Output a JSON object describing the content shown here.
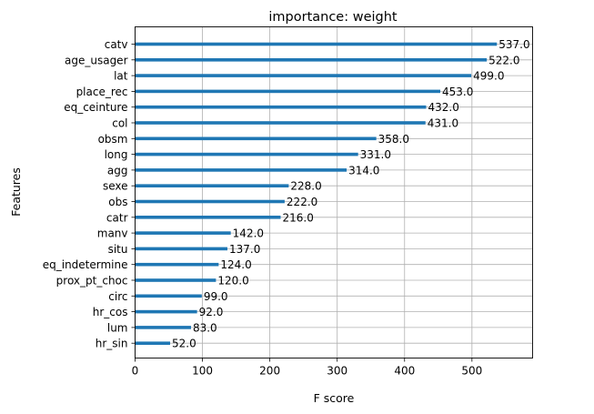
{
  "chart_data": {
    "type": "bar",
    "orientation": "horizontal",
    "title": "importance: weight",
    "xlabel": "F score",
    "ylabel": "Features",
    "xlim": [
      0,
      590
    ],
    "xticks": [
      "0",
      "100",
      "200",
      "300",
      "400",
      "500"
    ],
    "grid": true,
    "bar_color": "#1f77b4",
    "categories": [
      "catv",
      "age_usager",
      "lat",
      "place_rec",
      "eq_ceinture",
      "col",
      "obsm",
      "long",
      "agg",
      "sexe",
      "obs",
      "catr",
      "manv",
      "situ",
      "eq_indetermine",
      "prox_pt_choc",
      "circ",
      "hr_cos",
      "lum",
      "hr_sin"
    ],
    "values": [
      537,
      522,
      499,
      453,
      432,
      431,
      358,
      331,
      314,
      228,
      222,
      216,
      142,
      137,
      124,
      120,
      99,
      92,
      83,
      52
    ],
    "value_labels": [
      "537.0",
      "522.0",
      "499.0",
      "453.0",
      "432.0",
      "431.0",
      "358.0",
      "331.0",
      "314.0",
      "228.0",
      "222.0",
      "216.0",
      "142.0",
      "137.0",
      "124.0",
      "120.0",
      "99.0",
      "92.0",
      "83.0",
      "52.0"
    ]
  }
}
